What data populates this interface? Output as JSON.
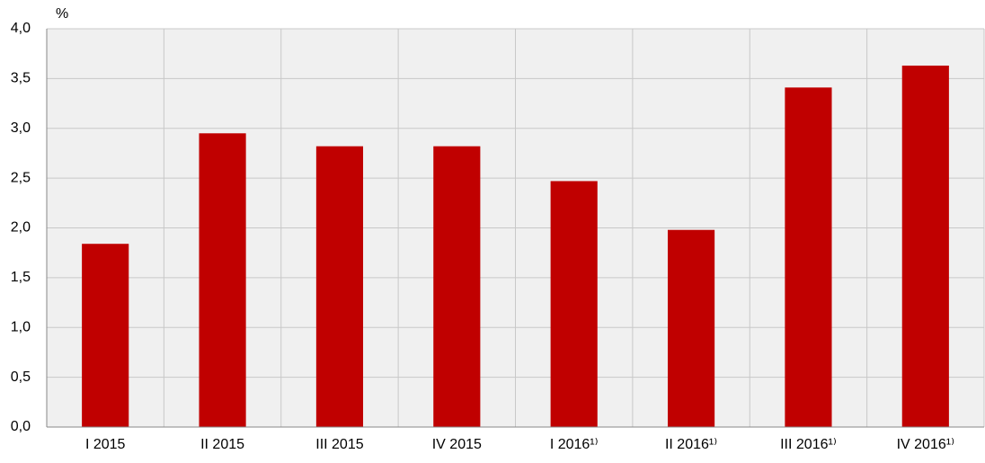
{
  "chart_data": {
    "type": "bar",
    "y_unit": "%",
    "categories": [
      "I 2015",
      "II 2015",
      "III 2015",
      "IV 2015",
      "I 2016¹⁾",
      "II 2016¹⁾",
      "III 2016¹⁾",
      "IV 2016¹⁾"
    ],
    "values": [
      1.84,
      2.95,
      2.82,
      2.82,
      2.47,
      1.98,
      3.41,
      3.63
    ],
    "color": "#c00000",
    "ylim": [
      0,
      4
    ],
    "yticks": [
      {
        "value": 0,
        "label": "0,0"
      },
      {
        "value": 0.5,
        "label": "0,5"
      },
      {
        "value": 1,
        "label": "1,0"
      },
      {
        "value": 1.5,
        "label": "1,5"
      },
      {
        "value": 2,
        "label": "2,0"
      },
      {
        "value": 2.5,
        "label": "2,5"
      },
      {
        "value": 3,
        "label": "3,0"
      },
      {
        "value": 3.5,
        "label": "3,5"
      },
      {
        "value": 4,
        "label": "4,0"
      }
    ],
    "grid": true
  }
}
